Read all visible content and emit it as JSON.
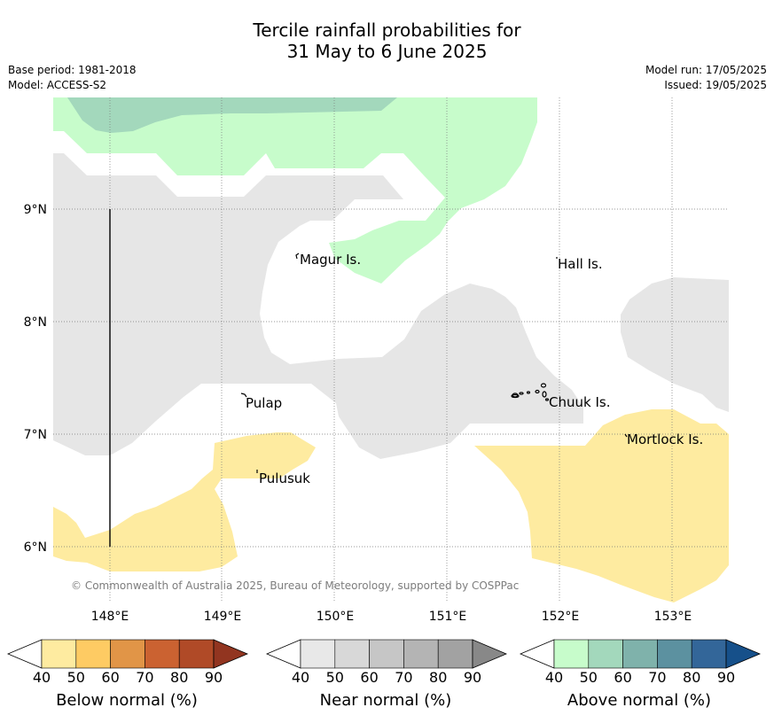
{
  "title_line1": "Tercile rainfall probabilities for",
  "title_line2": "31 May to 6 June 2025",
  "base_period": "Base period: 1981-2018",
  "model": "Model: ACCESS-S2",
  "model_run": "Model run: 17/05/2025",
  "issued": "Issued: 19/05/2025",
  "map": {
    "lon_labels": [
      "148°E",
      "149°E",
      "150°E",
      "151°E",
      "152°E",
      "153°E"
    ],
    "lat_labels": [
      "9°N",
      "8°N",
      "7°N",
      "6°N"
    ],
    "places": [
      "Magur Is.",
      "Hall Is.",
      "Pulap",
      "Chuuk Is.",
      "Mortlock Is.",
      "Pulusuk"
    ],
    "copyright": "© Commonwealth of Australia 2025, Bureau of Meteorology, supported by COSPPac"
  },
  "colorbars": [
    {
      "title": "Below normal (%)",
      "ticks": [
        "40",
        "50",
        "60",
        "70",
        "80",
        "90"
      ],
      "colors": [
        "#ffffff",
        "#feeba0",
        "#fecb63",
        "#e19547",
        "#cb6231",
        "#b04a27",
        "#923520"
      ]
    },
    {
      "title": "Near normal (%)",
      "ticks": [
        "40",
        "50",
        "60",
        "70",
        "80",
        "90"
      ],
      "colors": [
        "#ffffff",
        "#e8e8e8",
        "#d8d8d8",
        "#c6c6c6",
        "#b4b4b4",
        "#a2a2a2",
        "#888888"
      ]
    },
    {
      "title": "Above normal (%)",
      "ticks": [
        "40",
        "50",
        "60",
        "70",
        "80",
        "90"
      ],
      "colors": [
        "#ffffff",
        "#c7fccb",
        "#a3d8bc",
        "#7fb2ab",
        "#5c91a0",
        "#336699",
        "#16508a"
      ]
    }
  ]
}
